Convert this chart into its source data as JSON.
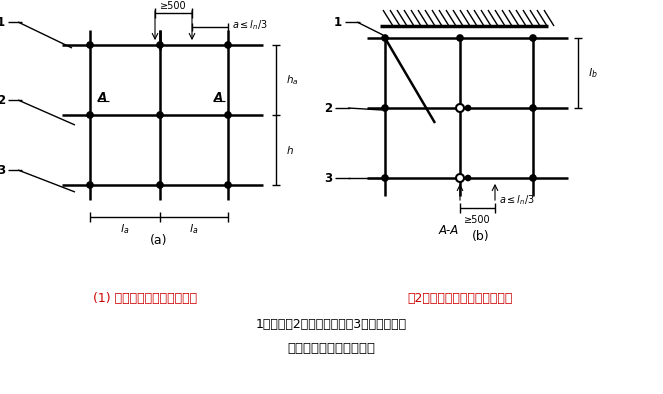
{
  "fig_width": 6.63,
  "fig_height": 3.94,
  "dpi": 100,
  "bg_color": "#ffffff",
  "line_color": "#000000",
  "caption1": "(1) 接头不在同步内（立面）",
  "caption2": "（2）接头不在同跨内（平面）",
  "caption3": "1－立杆；2－纵向水平杆；3－横向水平杆",
  "caption4": "纵向水平杆对接接头布置"
}
